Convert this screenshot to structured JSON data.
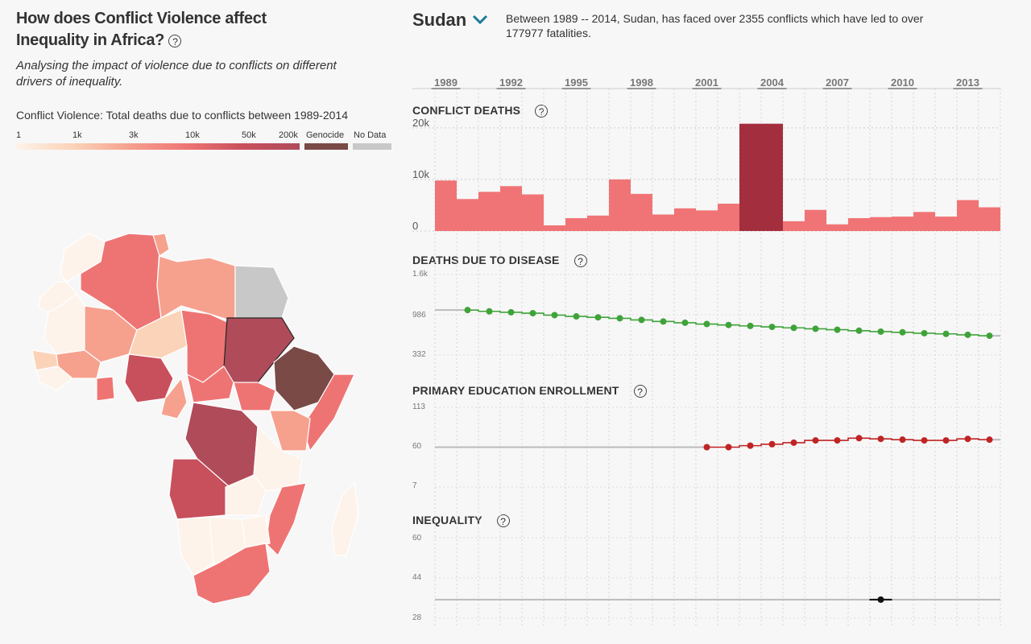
{
  "left": {
    "title": "How does Conflict Violence affect Inequality in Africa?",
    "help_glyph": "?",
    "subtitle": "Analysing the impact of violence due to conflicts on different drivers of inequality.",
    "legend_title": "Conflict Violence: Total deaths due to conflicts between 1989-2014",
    "legend_labels": [
      "1",
      "1k",
      "3k",
      "10k",
      "50k",
      "200k"
    ],
    "legend_genocide": "Genocide",
    "legend_nodata": "No Data",
    "colors": {
      "genocide": "#7a4a46",
      "nodata": "#c8c8c8",
      "selected": "#b04b5a"
    }
  },
  "country_panel": {
    "country": "Sudan",
    "summary": "Between 1989 -- 2014, Sudan, has faced over 2355 conflicts which have led to over 177977 fatalities.",
    "year_labels": [
      "1989",
      "1992",
      "1995",
      "1998",
      "2001",
      "2004",
      "2007",
      "2010",
      "2013"
    ]
  },
  "panels": [
    {
      "title": "CONFLICT DEATHS",
      "help": "?"
    },
    {
      "title": "DEATHS DUE TO DISEASE",
      "help": "?",
      "ticks": [
        "1.6k",
        "986",
        "332"
      ]
    },
    {
      "title": "PRIMARY EDUCATION ENROLLMENT",
      "help": "?",
      "ticks": [
        "113",
        "60",
        "7"
      ]
    },
    {
      "title": "INEQUALITY",
      "help": "?",
      "ticks": [
        "60",
        "44",
        "28"
      ]
    }
  ],
  "chart_data": [
    {
      "type": "bar",
      "title": "CONFLICT DEATHS",
      "categories": [
        "1989",
        "1990",
        "1991",
        "1992",
        "1993",
        "1994",
        "1995",
        "1996",
        "1997",
        "1998",
        "1999",
        "2000",
        "2001",
        "2002",
        "2003",
        "2004",
        "2005",
        "2006",
        "2007",
        "2008",
        "2009",
        "2010",
        "2011",
        "2012",
        "2013",
        "2014"
      ],
      "values": [
        9800,
        6200,
        7600,
        8700,
        7100,
        1100,
        2500,
        3000,
        10000,
        7200,
        3200,
        4400,
        4000,
        5300,
        20800,
        20800,
        1900,
        4100,
        1300,
        2500,
        2700,
        2800,
        3700,
        2800,
        6000,
        4600
      ],
      "highlight": [
        "2003",
        "2004"
      ],
      "y_ticks": [
        "0",
        "10k",
        "20k"
      ],
      "ylim": [
        0,
        22000
      ],
      "colors": {
        "bar": "#f07475",
        "highlight": "#a32e3e"
      }
    },
    {
      "type": "line",
      "title": "DEATHS DUE TO DISEASE",
      "x": [
        1990,
        1991,
        1992,
        1993,
        1994,
        1995,
        1996,
        1997,
        1998,
        1999,
        2000,
        2001,
        2002,
        2003,
        2004,
        2005,
        2006,
        2007,
        2008,
        2009,
        2010,
        2011,
        2012,
        2013,
        2014
      ],
      "y": [
        1040,
        1020,
        1005,
        990,
        960,
        940,
        925,
        910,
        885,
        860,
        840,
        820,
        805,
        790,
        775,
        760,
        745,
        730,
        715,
        700,
        690,
        675,
        665,
        650,
        635
      ],
      "ylim": [
        332,
        1600
      ],
      "colors": {
        "line": "#3fa33a"
      }
    },
    {
      "type": "line",
      "title": "PRIMARY EDUCATION ENROLLMENT",
      "x": [
        2001,
        2002,
        2003,
        2004,
        2005,
        2006,
        2007,
        2008,
        2009,
        2010,
        2011,
        2012,
        2013,
        2014
      ],
      "y": [
        60,
        60,
        62,
        64,
        66,
        69,
        69,
        72,
        71,
        70,
        69,
        69,
        71,
        70
      ],
      "ylim": [
        7,
        113
      ],
      "colors": {
        "line": "#c02424"
      }
    },
    {
      "type": "line",
      "title": "INEQUALITY",
      "x": [
        2009
      ],
      "y": [
        35.4
      ],
      "ylim": [
        28,
        60
      ],
      "colors": {
        "line": "#111111"
      }
    }
  ]
}
